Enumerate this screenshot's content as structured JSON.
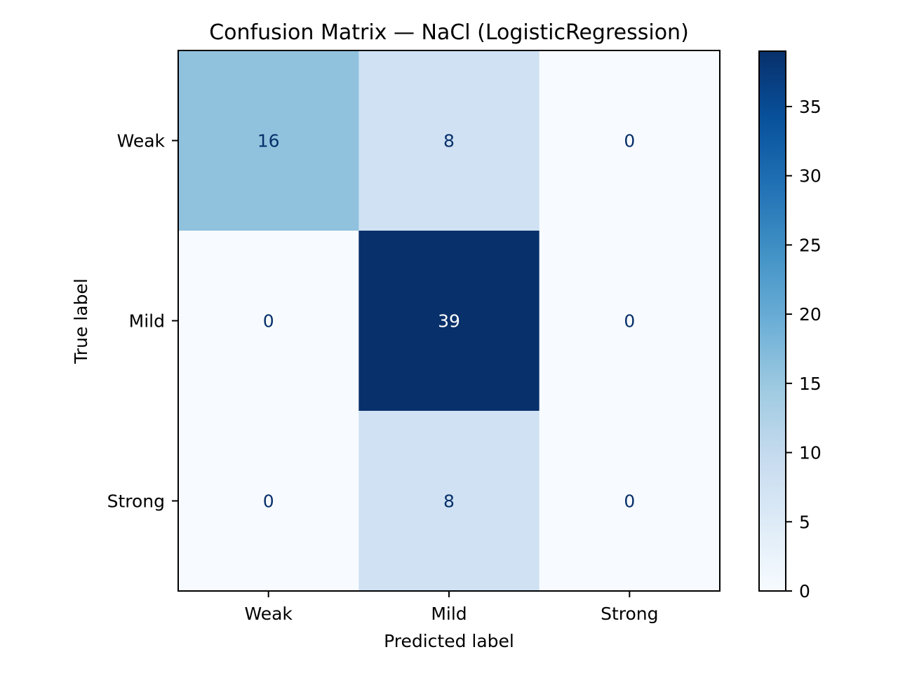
{
  "chart_data": {
    "type": "heatmap",
    "title": "Confusion Matrix — NaCl (LogisticRegression)",
    "xlabel": "Predicted label",
    "ylabel": "True label",
    "x_categories": [
      "Weak",
      "Mild",
      "Strong"
    ],
    "y_categories": [
      "Weak",
      "Mild",
      "Strong"
    ],
    "values": [
      [
        16,
        8,
        0
      ],
      [
        0,
        39,
        0
      ],
      [
        0,
        8,
        0
      ]
    ],
    "colormap": "Blues",
    "colormap_stops": [
      "#f7fbff",
      "#deebf7",
      "#c6dbef",
      "#9ecae1",
      "#6baed6",
      "#4292c6",
      "#2171b5",
      "#08519c",
      "#08306b"
    ],
    "colorbar": {
      "range": [
        0,
        39
      ],
      "ticks": [
        "0",
        "5",
        "10",
        "15",
        "20",
        "25",
        "30",
        "35"
      ]
    },
    "text_color_dark": "#08306b",
    "text_color_light": "#ffffff",
    "grid": false
  }
}
